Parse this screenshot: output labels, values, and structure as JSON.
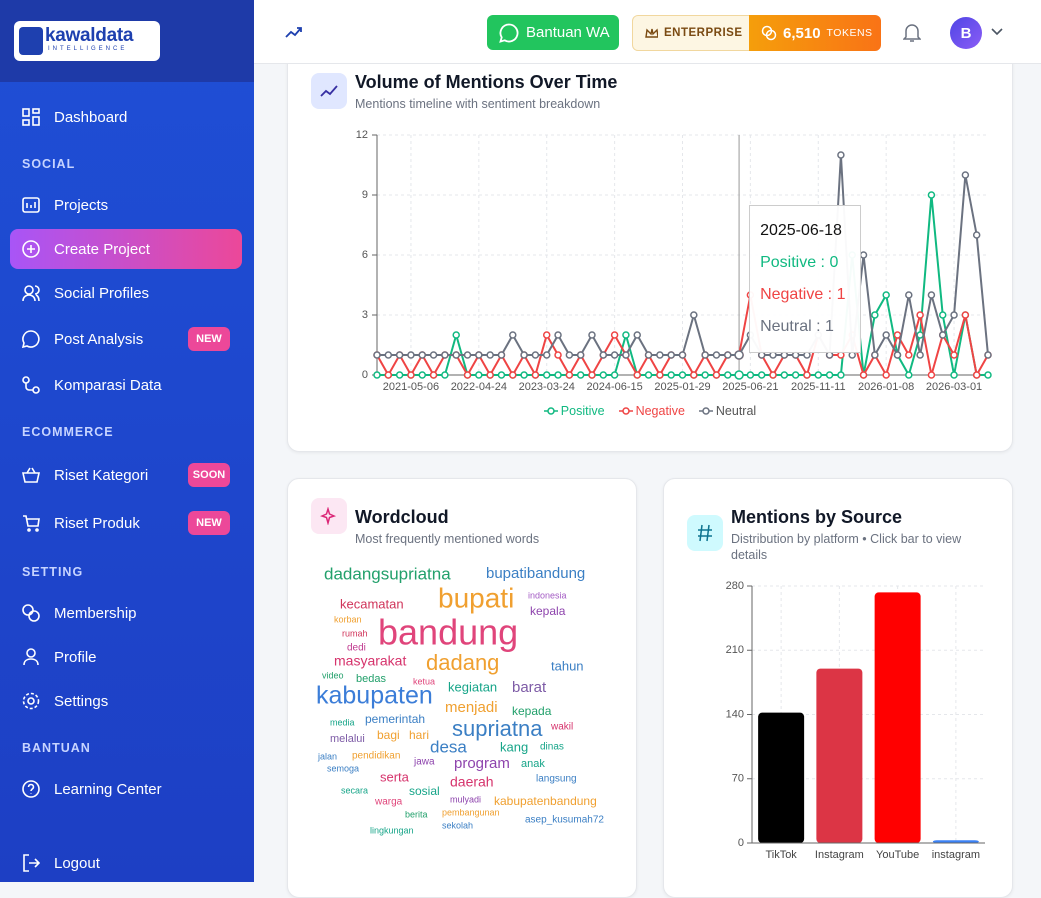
{
  "sidebar": {
    "logo": {
      "name": "kawaldata",
      "tagline": "INTELLIGENCE"
    },
    "dashboard": "Dashboard",
    "sections": [
      "SOCIAL",
      "ECOMMERCE",
      "SETTING",
      "BANTUAN"
    ],
    "items": [
      {
        "label": "Projects"
      },
      {
        "label": "Create Project"
      },
      {
        "label": "Social Profiles"
      },
      {
        "label": "Post Analysis",
        "badge": "NEW"
      },
      {
        "label": "Komparasi Data"
      },
      {
        "label": "Riset Kategori",
        "badge": "SOON"
      },
      {
        "label": "Riset Produk",
        "badge": "NEW"
      },
      {
        "label": "Membership"
      },
      {
        "label": "Profile"
      },
      {
        "label": "Settings"
      },
      {
        "label": "Learning Center"
      },
      {
        "label": "Logout"
      }
    ]
  },
  "header": {
    "wa_button": "Bantuan WA",
    "plan": "ENTERPRISE",
    "tokens": "6,510",
    "tokens_unit": "TOKENS",
    "avatar": "B"
  },
  "cards": [
    {
      "title": "Volume of Mentions Over Time",
      "subtitle": "Mentions timeline with sentiment breakdown"
    },
    {
      "title": "Wordcloud",
      "subtitle": "Most frequently mentioned words"
    },
    {
      "title": "Mentions by Source",
      "subtitle": "Distribution by platform • Click bar to view details"
    }
  ],
  "wordcloud": {
    "words": [
      {
        "text": "dadangsupriatna",
        "weight": 17,
        "color": "#22a06b"
      },
      {
        "text": "bupatibandung",
        "weight": 15,
        "color": "#3b7fc4"
      },
      {
        "text": "kecamatan",
        "weight": 13,
        "color": "#d0345a"
      },
      {
        "text": "bupati",
        "weight": 28,
        "color": "#f0a030"
      },
      {
        "text": "indonesia",
        "weight": 9,
        "color": "#a45cc4"
      },
      {
        "text": "kepala",
        "weight": 12,
        "color": "#8e44ad"
      },
      {
        "text": "korban",
        "weight": 9,
        "color": "#f0a030"
      },
      {
        "text": "bandung",
        "weight": 36,
        "color": "#e0457b"
      },
      {
        "text": "rumah",
        "weight": 9,
        "color": "#d0345a"
      },
      {
        "text": "dedi",
        "weight": 10,
        "color": "#c0398f"
      },
      {
        "text": "masyarakat",
        "weight": 14,
        "color": "#d6336c"
      },
      {
        "text": "dadang",
        "weight": 22,
        "color": "#f0a030"
      },
      {
        "text": "tahun",
        "weight": 13,
        "color": "#3b7fc4"
      },
      {
        "text": "video",
        "weight": 9,
        "color": "#22a06b"
      },
      {
        "text": "bedas",
        "weight": 11,
        "color": "#22a06b"
      },
      {
        "text": "ketua",
        "weight": 9,
        "color": "#e0457b"
      },
      {
        "text": "kabupaten",
        "weight": 25,
        "color": "#3b7dd8"
      },
      {
        "text": "kegiatan",
        "weight": 13,
        "color": "#17a589"
      },
      {
        "text": "barat",
        "weight": 15,
        "color": "#7d5ba6"
      },
      {
        "text": "menjadi",
        "weight": 15,
        "color": "#f0a030"
      },
      {
        "text": "media",
        "weight": 9,
        "color": "#17a589"
      },
      {
        "text": "pemerintah",
        "weight": 12,
        "color": "#3b7fc4"
      },
      {
        "text": "kepada",
        "weight": 12,
        "color": "#22a06b"
      },
      {
        "text": "wakil",
        "weight": 10,
        "color": "#d6336c"
      },
      {
        "text": "supriatna",
        "weight": 22,
        "color": "#3b7fc4"
      },
      {
        "text": "melalui",
        "weight": 11,
        "color": "#7d5ba6"
      },
      {
        "text": "bagi",
        "weight": 12,
        "color": "#f0a030"
      },
      {
        "text": "hari",
        "weight": 12,
        "color": "#f0a030"
      },
      {
        "text": "desa",
        "weight": 17,
        "color": "#3b7fc4"
      },
      {
        "text": "kang",
        "weight": 13,
        "color": "#17a589"
      },
      {
        "text": "dinas",
        "weight": 10,
        "color": "#17a589"
      },
      {
        "text": "jalan",
        "weight": 9,
        "color": "#3b7fc4"
      },
      {
        "text": "pendidikan",
        "weight": 10,
        "color": "#f0a030"
      },
      {
        "text": "jawa",
        "weight": 10,
        "color": "#8e44ad"
      },
      {
        "text": "program",
        "weight": 15,
        "color": "#8e44ad"
      },
      {
        "text": "anak",
        "weight": 11,
        "color": "#17a589"
      },
      {
        "text": "semoga",
        "weight": 9,
        "color": "#3b7fc4"
      },
      {
        "text": "serta",
        "weight": 13,
        "color": "#d6336c"
      },
      {
        "text": "daerah",
        "weight": 14,
        "color": "#d6336c"
      },
      {
        "text": "langsung",
        "weight": 10,
        "color": "#3b7fc4"
      },
      {
        "text": "secara",
        "weight": 9,
        "color": "#17a589"
      },
      {
        "text": "sosial",
        "weight": 12,
        "color": "#17a589"
      },
      {
        "text": "warga",
        "weight": 10,
        "color": "#e0457b"
      },
      {
        "text": "mulyadi",
        "weight": 9,
        "color": "#8e44ad"
      },
      {
        "text": "kabupatenbandung",
        "weight": 12,
        "color": "#f0a030"
      },
      {
        "text": "berita",
        "weight": 9,
        "color": "#22a06b"
      },
      {
        "text": "pembangunan",
        "weight": 9,
        "color": "#f0a030"
      },
      {
        "text": "asep_kusumah72",
        "weight": 10,
        "color": "#3b7fc4"
      },
      {
        "text": "lingkungan",
        "weight": 9,
        "color": "#17a589"
      },
      {
        "text": "sekolah",
        "weight": 9,
        "color": "#3b7fc4"
      }
    ]
  },
  "chart_data": [
    {
      "type": "line",
      "categories": [
        null,
        null,
        null,
        "2021-05-06",
        null,
        null,
        null,
        null,
        null,
        "2022-04-24",
        null,
        null,
        null,
        null,
        null,
        "2023-03-24",
        null,
        null,
        null,
        null,
        null,
        "2024-06-15",
        null,
        null,
        null,
        null,
        null,
        "2025-01-29",
        null,
        null,
        null,
        null,
        "2025-06-18",
        "2025-06-21",
        null,
        null,
        null,
        null,
        null,
        "2025-11-11",
        null,
        null,
        null,
        null,
        null,
        "2026-01-08",
        null,
        null,
        null,
        null,
        null,
        "2026-03-01",
        null,
        null,
        null
      ],
      "series": [
        {
          "name": "Positive",
          "color": "#10b981",
          "values": [
            0,
            0,
            0,
            0,
            0,
            0,
            0,
            2,
            0,
            0,
            0,
            0,
            0,
            0,
            0,
            0,
            0,
            0,
            0,
            0,
            0,
            0,
            2,
            0,
            0,
            0,
            0,
            0,
            0,
            0,
            0,
            0,
            0,
            0,
            0,
            0,
            0,
            0,
            0,
            0,
            0,
            0,
            6,
            0,
            3,
            4,
            1,
            0,
            2,
            9,
            3,
            0,
            3,
            0,
            0
          ]
        },
        {
          "name": "Negative",
          "color": "#ef4444",
          "values": [
            1,
            0,
            1,
            0,
            1,
            0,
            1,
            1,
            0,
            1,
            0,
            1,
            0,
            1,
            0,
            2,
            1,
            0,
            1,
            0,
            1,
            2,
            1,
            0,
            1,
            0,
            1,
            1,
            0,
            1,
            0,
            1,
            1,
            4,
            1,
            0,
            1,
            1,
            0,
            2,
            1,
            1,
            2,
            0,
            1,
            0,
            2,
            1,
            3,
            0,
            2,
            1,
            3,
            0,
            1
          ]
        },
        {
          "name": "Neutral",
          "color": "#6b7280",
          "values": [
            1,
            1,
            1,
            1,
            1,
            1,
            1,
            1,
            1,
            1,
            1,
            1,
            2,
            1,
            1,
            1,
            2,
            1,
            1,
            2,
            1,
            1,
            1,
            2,
            1,
            1,
            1,
            1,
            3,
            1,
            1,
            1,
            1,
            2,
            1,
            1,
            1,
            1,
            1,
            2,
            1,
            11,
            1,
            6,
            1,
            2,
            1,
            4,
            1,
            4,
            2,
            3,
            10,
            7,
            1
          ]
        }
      ],
      "ylim": [
        0,
        12
      ],
      "yticks": [
        0,
        3,
        6,
        9,
        12
      ],
      "grid": true,
      "legend": "bottom",
      "active_index": 32
    },
    {
      "type": "bar",
      "categories": [
        "TikTok",
        "Instagram",
        "YouTube",
        "instagram"
      ],
      "values": [
        142,
        190,
        273,
        3
      ],
      "colors": [
        "#000000",
        "#dc3545",
        "#ff0000",
        "#3b82f6"
      ],
      "ylim": [
        0,
        280
      ],
      "yticks": [
        0,
        70,
        140,
        210,
        280
      ],
      "grid": true
    }
  ]
}
